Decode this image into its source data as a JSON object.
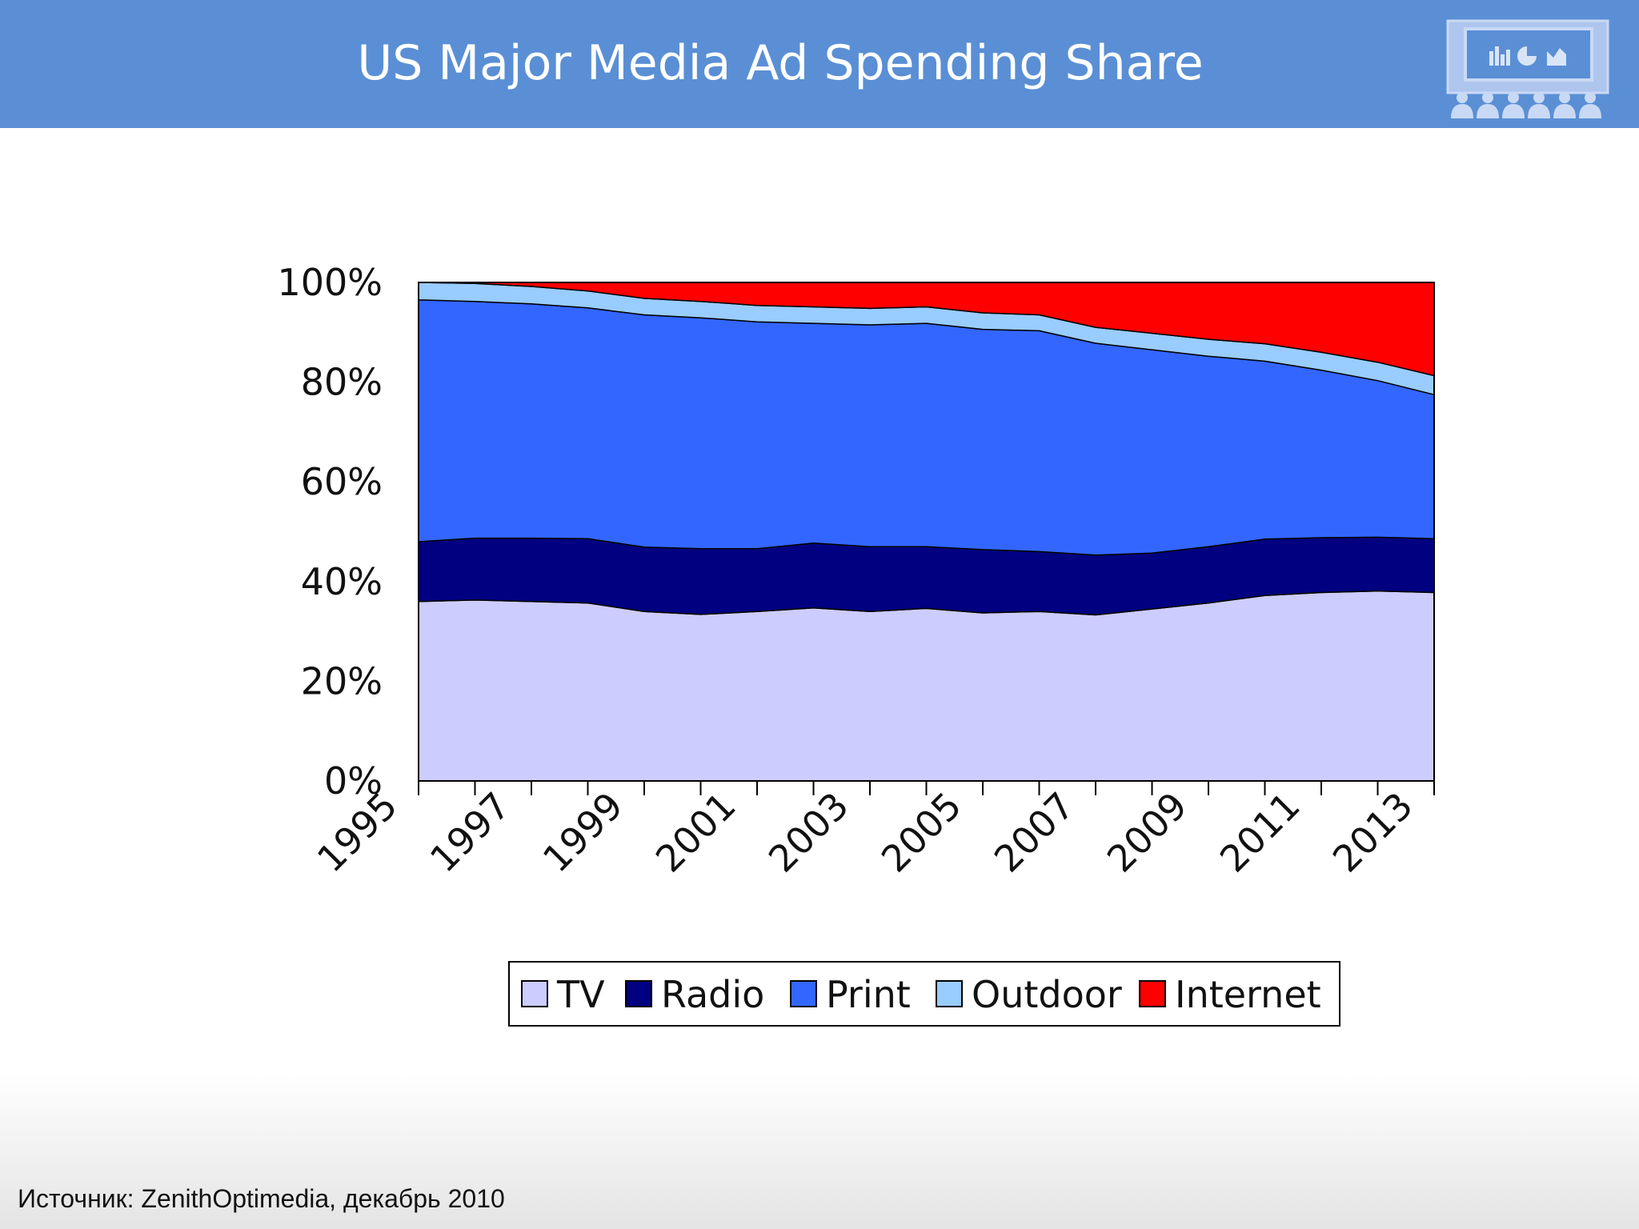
{
  "slide": {
    "title": "US Major Media Ad Spending Share",
    "source": "Источник: ZenithOptimedia, декабрь 2010"
  },
  "logo": {
    "icon": "presentation-screen-audience-icon",
    "color": "#b7ccf0"
  },
  "chart_data": {
    "type": "area",
    "stacked": true,
    "title": "",
    "xlabel": "",
    "ylabel": "",
    "ylim": [
      0,
      100
    ],
    "y_ticks": [
      "0%",
      "20%",
      "40%",
      "60%",
      "80%",
      "100%"
    ],
    "x_tick_labels": [
      "1995",
      "1997",
      "1999",
      "2001",
      "2003",
      "2005",
      "2007",
      "2009",
      "2011",
      "2013"
    ],
    "x": [
      1995,
      1996,
      1997,
      1998,
      1999,
      2000,
      2001,
      2002,
      2003,
      2004,
      2005,
      2006,
      2007,
      2008,
      2009,
      2010,
      2011,
      2012,
      2013
    ],
    "legend_position": "bottom",
    "series": [
      {
        "name": "TV",
        "color": "#ccccff",
        "values": [
          36,
          36.3,
          36,
          35.7,
          34,
          33.4,
          34,
          34.7,
          34,
          34.6,
          33.7,
          34,
          33.3,
          34.5,
          35.7,
          37.2,
          37.8,
          38.1,
          37.8
        ]
      },
      {
        "name": "Radio",
        "color": "#000080",
        "values": [
          12,
          12.4,
          12.7,
          12.9,
          12.9,
          13.2,
          12.6,
          13,
          13,
          12.4,
          12.7,
          12,
          12,
          11.2,
          11.3,
          11.3,
          11,
          10.8,
          10.8
        ]
      },
      {
        "name": "Print",
        "color": "#3366ff",
        "values": [
          48.5,
          47.5,
          47,
          46.3,
          46.6,
          46.3,
          45.5,
          44.1,
          44.5,
          44.8,
          44.2,
          44.3,
          42.5,
          40.8,
          38.2,
          35.7,
          33.6,
          31.4,
          28.9
        ]
      },
      {
        "name": "Outdoor",
        "color": "#99ccff",
        "values": [
          3.5,
          3.6,
          3.5,
          3.4,
          3.3,
          3.3,
          3.3,
          3.3,
          3.3,
          3.3,
          3.3,
          3.2,
          3.2,
          3.3,
          3.4,
          3.5,
          3.6,
          3.7,
          3.8
        ]
      },
      {
        "name": "Internet",
        "color": "#ff0000",
        "values": [
          0,
          0.2,
          0.8,
          1.7,
          3.2,
          3.8,
          4.6,
          4.9,
          5.2,
          4.9,
          6.1,
          6.5,
          9,
          10.2,
          11.4,
          12.3,
          14,
          16,
          18.7
        ]
      }
    ]
  }
}
